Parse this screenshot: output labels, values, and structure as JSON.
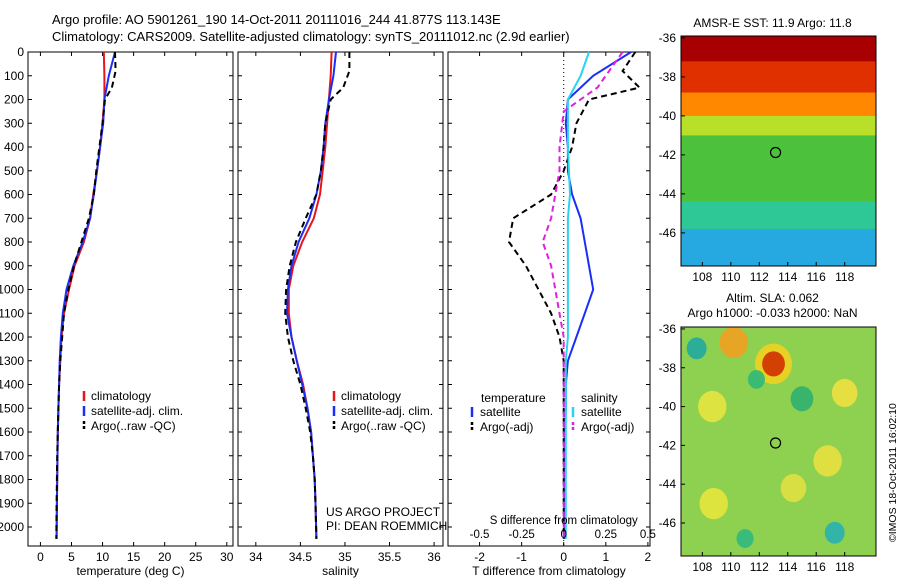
{
  "header": {
    "line1": "Argo profile: AO 5901261_190 14-Oct-2011 20111016_244 41.877S 113.143E",
    "line2": "Climatology: CARS2009. Satellite-adjusted climatology: synTS_20111012.nc (2.9d earlier)"
  },
  "stamp": "©IMOS 18-Oct-2011 16:02:10",
  "panel_texts": {
    "project": "US ARGO PROJECT",
    "pi": "PI: DEAN ROEMMICH",
    "s_diff_label": "S difference from climatology"
  },
  "colors": {
    "climatology": "#e8141e",
    "satellite": "#1a2ff5",
    "argo": "#000000",
    "sal_satellite": "#29d4ee",
    "sal_argo": "#e020e0"
  },
  "chart_data": [
    {
      "type": "line",
      "xlabel": "temperature (deg C)",
      "ylabel": "",
      "xlim": [
        -2,
        31
      ],
      "ylim": [
        2080,
        0
      ],
      "y_reversed": true,
      "xticks": [
        0,
        5,
        10,
        15,
        20,
        25,
        30
      ],
      "yticks": [
        0,
        100,
        200,
        300,
        400,
        500,
        600,
        700,
        800,
        900,
        1000,
        1100,
        1200,
        1300,
        1400,
        1500,
        1600,
        1700,
        1800,
        1900,
        2000
      ],
      "legend": {
        "placement": "lower-right",
        "entries": [
          "climatology",
          "satellite-adj. clim.",
          "Argo(..raw -QC)"
        ]
      },
      "series": [
        {
          "name": "climatology",
          "color_key": "climatology",
          "dash": false,
          "x": [
            10.2,
            10.3,
            10.3,
            10.0,
            9.6,
            9.1,
            8.5,
            8.0,
            7.0,
            5.5,
            4.6,
            3.8,
            3.4,
            3.2,
            3.0,
            2.9,
            2.8,
            2.75,
            2.7,
            2.65,
            2.6
          ],
          "y": [
            0,
            100,
            200,
            300,
            400,
            500,
            600,
            700,
            800,
            900,
            1000,
            1100,
            1200,
            1300,
            1400,
            1500,
            1600,
            1700,
            1800,
            1900,
            2050
          ]
        },
        {
          "name": "satellite-adj. clim.",
          "color_key": "satellite",
          "dash": false,
          "x": [
            12.0,
            11.0,
            10.3,
            10.1,
            9.6,
            9.1,
            8.6,
            8.0,
            6.8,
            5.3,
            4.2,
            3.6,
            3.3,
            3.1,
            3.0,
            2.9,
            2.8,
            2.75,
            2.7,
            2.65,
            2.6
          ],
          "y": [
            0,
            100,
            200,
            300,
            400,
            500,
            600,
            700,
            800,
            900,
            1000,
            1100,
            1200,
            1300,
            1400,
            1500,
            1600,
            1700,
            1800,
            1900,
            2050
          ]
        },
        {
          "name": "Argo(..raw -QC)",
          "color_key": "argo",
          "dash": true,
          "x": [
            12.0,
            12.1,
            11.5,
            10.4,
            10.0,
            9.5,
            9.0,
            8.6,
            7.8,
            6.6,
            5.4,
            4.5,
            3.8,
            3.5,
            3.2,
            3.0,
            2.9,
            2.8,
            2.7,
            2.65,
            2.6,
            2.55
          ],
          "y": [
            0,
            80,
            150,
            200,
            300,
            400,
            500,
            600,
            700,
            800,
            900,
            1000,
            1100,
            1200,
            1300,
            1400,
            1500,
            1600,
            1700,
            1800,
            1900,
            2050
          ]
        }
      ]
    },
    {
      "type": "line",
      "xlabel": "salinity",
      "ylabel": "",
      "xlim": [
        33.8,
        36.1
      ],
      "ylim": [
        2080,
        0
      ],
      "y_reversed": true,
      "xticks": [
        34,
        34.5,
        35,
        35.5,
        36
      ],
      "legend": {
        "placement": "lower-right",
        "entries": [
          "climatology",
          "satellite-adj. clim.",
          "Argo(..raw -QC)"
        ]
      },
      "series": [
        {
          "name": "climatology",
          "color_key": "climatology",
          "dash": false,
          "x": [
            34.85,
            34.84,
            34.82,
            34.8,
            34.78,
            34.75,
            34.72,
            34.65,
            34.52,
            34.42,
            34.37,
            34.37,
            34.4,
            34.46,
            34.53,
            34.58,
            34.62,
            34.64,
            34.66,
            34.67,
            34.68
          ],
          "y": [
            0,
            100,
            200,
            300,
            400,
            500,
            600,
            700,
            800,
            900,
            1000,
            1100,
            1200,
            1300,
            1400,
            1500,
            1600,
            1700,
            1800,
            1900,
            2050
          ]
        },
        {
          "name": "satellite-adj. clim.",
          "color_key": "satellite",
          "dash": false,
          "x": [
            34.9,
            34.87,
            34.82,
            34.78,
            34.76,
            34.73,
            34.68,
            34.6,
            34.48,
            34.4,
            34.36,
            34.35,
            34.4,
            34.46,
            34.52,
            34.58,
            34.62,
            34.64,
            34.66,
            34.67,
            34.68
          ],
          "y": [
            0,
            100,
            200,
            300,
            400,
            500,
            600,
            700,
            800,
            900,
            1000,
            1100,
            1200,
            1300,
            1400,
            1500,
            1600,
            1700,
            1800,
            1900,
            2050
          ]
        },
        {
          "name": "Argo(..raw -QC)",
          "color_key": "argo",
          "dash": true,
          "x": [
            35.05,
            35.05,
            34.98,
            34.84,
            34.78,
            34.76,
            34.73,
            34.68,
            34.56,
            34.45,
            34.38,
            34.34,
            34.33,
            34.36,
            34.42,
            34.5,
            34.56,
            34.61,
            34.64,
            34.66,
            34.67,
            34.68
          ],
          "y": [
            0,
            80,
            150,
            200,
            300,
            400,
            500,
            600,
            700,
            800,
            900,
            1000,
            1100,
            1200,
            1300,
            1400,
            1500,
            1600,
            1700,
            1800,
            1900,
            2050
          ]
        }
      ]
    },
    {
      "type": "line",
      "xlabel": "T difference from climatology",
      "xlim": [
        -2.75,
        2.05
      ],
      "ylim": [
        2080,
        0
      ],
      "y_reversed": true,
      "xticks": [
        -2,
        -1,
        0,
        1,
        2
      ],
      "top_axis_label": "S difference from climatology",
      "top_ticks": [
        "-0.5",
        "-0.25",
        "0",
        "0.25",
        "0.5"
      ],
      "top_ticks_t_units": [
        -2,
        -1,
        0,
        1,
        2
      ],
      "legend": {
        "placement": "lower",
        "headers": [
          "temperature",
          "salinity"
        ],
        "entries": [
          "satellite",
          "Argo(-adj)",
          "satellite",
          "Argo(-adj)"
        ]
      },
      "series": [
        {
          "name": "satellite",
          "group": "temperature",
          "color_key": "satellite",
          "dash": false,
          "x": [
            1.6,
            0.7,
            0.1,
            0.05,
            0.1,
            0.1,
            0.2,
            0.4,
            0.5,
            0.6,
            0.7,
            0.5,
            0.3,
            0.1,
            0.05,
            0.05,
            0.03,
            0.02,
            0.02,
            0.02
          ],
          "y": [
            0,
            100,
            200,
            300,
            400,
            500,
            600,
            700,
            800,
            900,
            1000,
            1100,
            1200,
            1300,
            1400,
            1500,
            1600,
            1700,
            1800,
            2050
          ]
        },
        {
          "name": "Argo(-adj)",
          "group": "temperature",
          "color_key": "argo",
          "dash": true,
          "x": [
            1.7,
            1.4,
            1.8,
            0.6,
            0.3,
            0.2,
            0.0,
            -0.3,
            -1.2,
            -1.3,
            -0.9,
            -0.6,
            -0.3,
            -0.1,
            0.0,
            0.0,
            0.0,
            0.0,
            0.0,
            0.0
          ],
          "y": [
            0,
            80,
            150,
            200,
            300,
            400,
            500,
            600,
            700,
            800,
            900,
            1000,
            1100,
            1200,
            1300,
            1400,
            1500,
            1600,
            1700,
            2050
          ]
        },
        {
          "name": "satellite",
          "group": "salinity",
          "color_key": "sal_satellite",
          "dash": false,
          "x": [
            0.6,
            0.4,
            0.1,
            0.1,
            0.1,
            0.15,
            0.1,
            0.1,
            0.1,
            0.1,
            0.1,
            0.1,
            0.05,
            0.05,
            0.05,
            0.05,
            0.05,
            0.05
          ],
          "y": [
            0,
            100,
            200,
            300,
            400,
            600,
            700,
            800,
            900,
            1000,
            1100,
            1200,
            1300,
            1400,
            1500,
            1600,
            1700,
            2050
          ]
        },
        {
          "name": "Argo(-adj)",
          "group": "salinity",
          "color_key": "sal_argo",
          "dash": true,
          "x": [
            1.4,
            0.8,
            0.0,
            -0.1,
            -0.1,
            -0.2,
            -0.3,
            -0.5,
            -0.3,
            -0.2,
            -0.1,
            0.0,
            0.0,
            0.0,
            0.0
          ],
          "y": [
            0,
            150,
            250,
            400,
            500,
            600,
            700,
            800,
            900,
            1000,
            1100,
            1200,
            1400,
            1600,
            2050
          ]
        }
      ]
    },
    {
      "type": "heatmap",
      "title": "AMSR-E SST: 11.9 Argo: 11.8",
      "xticks": [
        108,
        110,
        112,
        114,
        116,
        118
      ],
      "yticks": [
        -36,
        -38,
        -40,
        -42,
        -44,
        -46
      ],
      "xlim": [
        106.5,
        120.2
      ],
      "ylim": [
        -47.7,
        -35.9
      ],
      "marker": {
        "lon": 113.143,
        "lat": -41.877
      },
      "bands": [
        {
          "lat_from": -35.9,
          "lat_to": -37.2,
          "color": "#a80000"
        },
        {
          "lat_from": -37.2,
          "lat_to": -38.8,
          "color": "#e03000"
        },
        {
          "lat_from": -38.8,
          "lat_to": -40.0,
          "color": "#ff8800"
        },
        {
          "lat_from": -40.0,
          "lat_to": -41.0,
          "color": "#b8e028"
        },
        {
          "lat_from": -41.0,
          "lat_to": -44.4,
          "color": "#4cc23c"
        },
        {
          "lat_from": -44.4,
          "lat_to": -45.8,
          "color": "#2ec896"
        },
        {
          "lat_from": -45.8,
          "lat_to": -47.7,
          "color": "#26a8e0"
        }
      ]
    },
    {
      "type": "heatmap",
      "title": "Altim. SLA: 0.062",
      "subtitle": "Argo h1000: -0.033 h2000: NaN",
      "xticks": [
        108,
        110,
        112,
        114,
        116,
        118
      ],
      "yticks": [
        -36,
        -38,
        -40,
        -42,
        -44,
        -46
      ],
      "xlim": [
        106.5,
        120.2
      ],
      "ylim": [
        -47.7,
        -35.9
      ],
      "marker": {
        "lon": 113.143,
        "lat": -41.877
      },
      "background": "#8ed050",
      "blobs": [
        {
          "lon": 110.2,
          "lat": -36.7,
          "r": 1.0,
          "color": "#f0a020"
        },
        {
          "lon": 113.0,
          "lat": -37.8,
          "r": 0.8,
          "color": "#d03000"
        },
        {
          "lon": 113.0,
          "lat": -37.8,
          "r": 1.3,
          "color": "#f0d020"
        },
        {
          "lon": 107.6,
          "lat": -37.0,
          "r": 0.7,
          "color": "#20a8a0"
        },
        {
          "lon": 111.8,
          "lat": -38.6,
          "r": 0.6,
          "color": "#30b878"
        },
        {
          "lon": 115.0,
          "lat": -39.6,
          "r": 0.8,
          "color": "#30b070"
        },
        {
          "lon": 118.0,
          "lat": -39.3,
          "r": 0.9,
          "color": "#f0e040"
        },
        {
          "lon": 108.7,
          "lat": -40.0,
          "r": 1.0,
          "color": "#e6e640"
        },
        {
          "lon": 116.8,
          "lat": -42.8,
          "r": 1.0,
          "color": "#e8e040"
        },
        {
          "lon": 114.4,
          "lat": -44.2,
          "r": 0.9,
          "color": "#e0e040"
        },
        {
          "lon": 108.8,
          "lat": -45.0,
          "r": 1.0,
          "color": "#e6e63c"
        },
        {
          "lon": 117.3,
          "lat": -46.5,
          "r": 0.7,
          "color": "#28b0b0"
        },
        {
          "lon": 111.0,
          "lat": -46.8,
          "r": 0.6,
          "color": "#30b880"
        }
      ]
    }
  ]
}
